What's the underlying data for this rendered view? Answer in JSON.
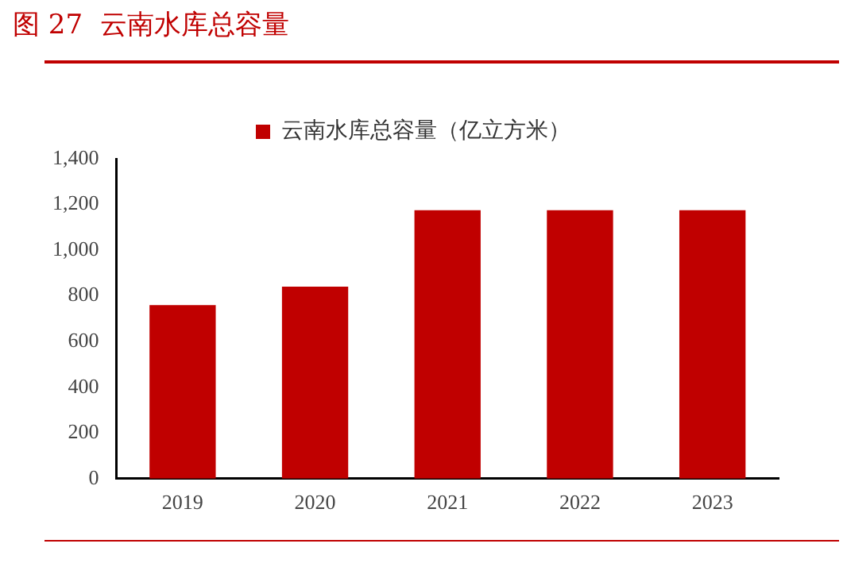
{
  "chart_data": {
    "type": "bar",
    "title": "图 27  云南水库总容量",
    "categories": [
      "2019",
      "2020",
      "2021",
      "2022",
      "2023"
    ],
    "series": [
      {
        "name": "云南水库总容量（亿立方米）",
        "color": "#c00000",
        "values": [
          760,
          840,
          1175,
          1175,
          1175
        ]
      }
    ],
    "ylim": [
      0,
      1400
    ],
    "yticks": [
      {
        "value": 0,
        "label": "0"
      },
      {
        "value": 200,
        "label": "200"
      },
      {
        "value": 400,
        "label": "400"
      },
      {
        "value": 600,
        "label": "600"
      },
      {
        "value": 800,
        "label": "800"
      },
      {
        "value": 1000,
        "label": "1,000"
      },
      {
        "value": 1200,
        "label": "1,200"
      },
      {
        "value": 1400,
        "label": "1,400"
      }
    ],
    "grid": false,
    "legend": "top"
  }
}
